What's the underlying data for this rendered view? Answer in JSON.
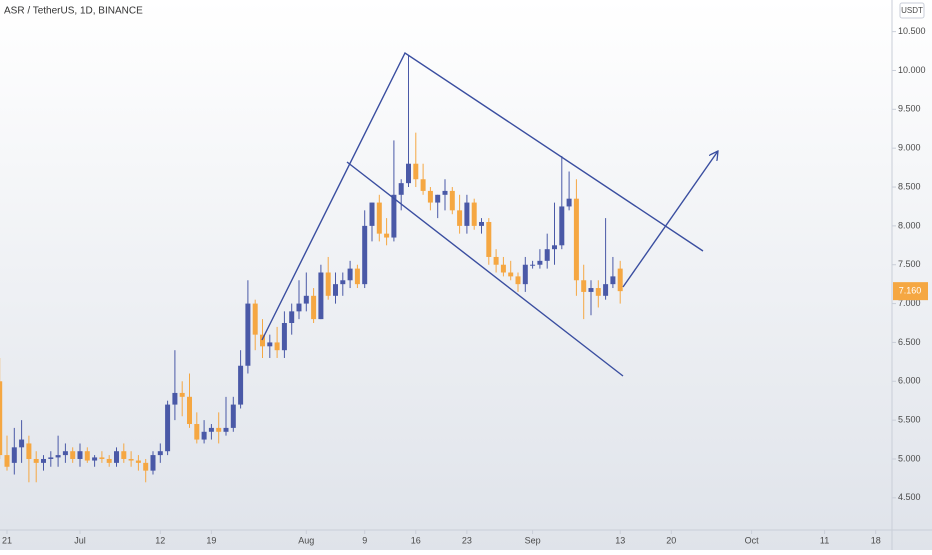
{
  "chart_data": {
    "type": "candlestick",
    "title": "ASR / TetherUS, 1D, BINANCE",
    "currency": "USDT",
    "categories": [
      "06-20",
      "06-21",
      "06-22",
      "06-23",
      "06-24",
      "06-25",
      "06-26",
      "06-27",
      "06-28",
      "06-29",
      "06-30",
      "07-01",
      "07-02",
      "07-03",
      "07-04",
      "07-05",
      "07-06",
      "07-07",
      "07-08",
      "07-09",
      "07-10",
      "07-11",
      "07-12",
      "07-13",
      "07-14",
      "07-15",
      "07-16",
      "07-17",
      "07-18",
      "07-19",
      "07-20",
      "07-21",
      "07-22",
      "07-23",
      "07-24",
      "07-25",
      "07-26",
      "07-27",
      "07-28",
      "07-29",
      "07-30",
      "07-31",
      "08-01",
      "08-02",
      "08-03",
      "08-04",
      "08-05",
      "08-06",
      "08-07",
      "08-08",
      "08-09",
      "08-10",
      "08-11",
      "08-12",
      "08-13",
      "08-14",
      "08-15",
      "08-16",
      "08-17",
      "08-18",
      "08-19",
      "08-20",
      "08-21",
      "08-22",
      "08-23",
      "08-24",
      "08-25",
      "08-26",
      "08-27",
      "08-28",
      "08-29",
      "08-30",
      "08-31",
      "09-01",
      "09-02",
      "09-03",
      "09-04",
      "09-05",
      "09-06",
      "09-07",
      "09-08",
      "09-09",
      "09-10",
      "09-11",
      "09-12",
      "09-13"
    ],
    "open": [
      6.0,
      5.05,
      4.95,
      5.15,
      5.2,
      5.0,
      4.95,
      5.0,
      5.02,
      5.05,
      5.1,
      5.0,
      5.1,
      4.98,
      5.02,
      5.0,
      4.95,
      5.1,
      5.0,
      4.98,
      4.95,
      4.85,
      5.05,
      5.1,
      5.7,
      5.85,
      5.8,
      5.45,
      5.25,
      5.35,
      5.4,
      5.35,
      5.4,
      5.7,
      6.2,
      7.0,
      6.6,
      6.45,
      6.5,
      6.4,
      6.75,
      6.9,
      7.0,
      7.1,
      6.8,
      7.4,
      7.1,
      7.25,
      7.3,
      7.45,
      7.25,
      8.0,
      8.3,
      7.9,
      7.85,
      8.4,
      8.55,
      8.8,
      8.6,
      8.45,
      8.3,
      8.4,
      8.45,
      8.2,
      8.0,
      8.3,
      8.0,
      8.05,
      7.6,
      7.5,
      7.4,
      7.35,
      7.25,
      7.5,
      7.5,
      7.55,
      7.7,
      7.75,
      8.25,
      8.35,
      7.3,
      7.15,
      7.2,
      7.1,
      7.25,
      7.45
    ],
    "high": [
      6.3,
      5.3,
      5.4,
      5.5,
      5.3,
      5.1,
      5.05,
      5.1,
      5.3,
      5.2,
      5.15,
      5.2,
      5.15,
      5.05,
      5.1,
      5.05,
      5.15,
      5.2,
      5.1,
      5.05,
      5.0,
      5.1,
      5.2,
      5.75,
      6.4,
      6.0,
      6.1,
      5.6,
      5.5,
      5.45,
      5.6,
      5.8,
      5.8,
      6.4,
      7.3,
      7.05,
      6.8,
      6.6,
      6.7,
      6.9,
      7.0,
      7.3,
      7.4,
      7.2,
      7.5,
      7.6,
      7.4,
      7.4,
      7.55,
      7.5,
      8.2,
      8.3,
      8.4,
      8.1,
      9.1,
      8.6,
      10.2,
      9.2,
      8.8,
      8.5,
      8.4,
      8.6,
      8.5,
      8.4,
      8.4,
      8.35,
      8.1,
      8.1,
      7.7,
      7.6,
      7.55,
      7.4,
      7.6,
      7.55,
      7.7,
      7.9,
      8.3,
      8.9,
      8.7,
      8.6,
      7.5,
      7.3,
      7.3,
      8.1,
      7.6,
      7.55
    ],
    "low": [
      5.0,
      4.85,
      4.8,
      4.95,
      4.7,
      4.7,
      4.85,
      4.9,
      4.9,
      4.95,
      4.95,
      4.9,
      4.95,
      4.9,
      4.95,
      4.9,
      4.9,
      4.95,
      4.9,
      4.85,
      4.7,
      4.8,
      4.95,
      5.05,
      5.5,
      5.55,
      5.4,
      5.2,
      5.2,
      5.25,
      5.2,
      5.3,
      5.35,
      5.65,
      6.1,
      6.4,
      6.3,
      6.3,
      6.3,
      6.3,
      6.6,
      6.8,
      6.9,
      6.75,
      6.8,
      7.05,
      7.0,
      7.1,
      7.2,
      7.2,
      7.2,
      7.8,
      7.8,
      7.75,
      7.8,
      8.2,
      8.5,
      8.5,
      8.4,
      8.2,
      8.1,
      8.2,
      8.15,
      7.9,
      7.9,
      7.95,
      7.9,
      7.5,
      7.4,
      7.35,
      7.3,
      7.15,
      7.15,
      7.45,
      7.45,
      7.45,
      7.5,
      7.7,
      8.2,
      7.1,
      6.8,
      6.85,
      6.95,
      7.05,
      7.2,
      7.0
    ],
    "close": [
      5.05,
      4.9,
      5.15,
      5.25,
      5.0,
      4.95,
      5.0,
      5.02,
      5.05,
      5.1,
      5.0,
      5.1,
      4.98,
      5.02,
      5.0,
      4.95,
      5.1,
      5.0,
      4.98,
      4.95,
      4.85,
      5.05,
      5.1,
      5.7,
      5.85,
      5.8,
      5.45,
      5.25,
      5.35,
      5.4,
      5.35,
      5.4,
      5.7,
      6.2,
      7.0,
      6.6,
      6.45,
      6.5,
      6.4,
      6.75,
      6.9,
      7.0,
      7.1,
      6.8,
      7.4,
      7.1,
      7.25,
      7.3,
      7.45,
      7.25,
      8.0,
      8.3,
      7.9,
      7.85,
      8.4,
      8.55,
      8.8,
      8.6,
      8.45,
      8.3,
      8.4,
      8.45,
      8.2,
      8.0,
      8.3,
      8.0,
      8.05,
      7.6,
      7.5,
      7.4,
      7.35,
      7.25,
      7.5,
      7.5,
      7.55,
      7.7,
      7.75,
      8.25,
      8.35,
      7.3,
      7.15,
      7.2,
      7.1,
      7.25,
      7.35,
      7.16
    ],
    "up_color": "#4a59a7",
    "down_color": "#f5a742",
    "ylim": [
      4.086,
      10.907
    ],
    "yticks": [
      {
        "value": 4.5,
        "label": "4.500"
      },
      {
        "value": 5.0,
        "label": "5.000"
      },
      {
        "value": 5.5,
        "label": "5.500"
      },
      {
        "value": 6.0,
        "label": "6.000"
      },
      {
        "value": 6.5,
        "label": "6.500"
      },
      {
        "value": 7.0,
        "label": "7.000"
      },
      {
        "value": 7.5,
        "label": "7.500"
      },
      {
        "value": 8.0,
        "label": "8.000"
      },
      {
        "value": 8.5,
        "label": "8.500"
      },
      {
        "value": 9.0,
        "label": "9.000"
      },
      {
        "value": 9.5,
        "label": "9.500"
      },
      {
        "value": 10.0,
        "label": "10.000"
      },
      {
        "value": 10.5,
        "label": "10.500"
      }
    ],
    "xticks": [
      {
        "value": "06-21",
        "label": "21"
      },
      {
        "value": "07-01",
        "label": "Jul"
      },
      {
        "value": "07-12",
        "label": "12"
      },
      {
        "value": "07-19",
        "label": "19"
      },
      {
        "value": "08-01",
        "label": "Aug"
      },
      {
        "value": "08-09",
        "label": "9"
      },
      {
        "value": "08-16",
        "label": "16"
      },
      {
        "value": "08-23",
        "label": "23"
      },
      {
        "value": "09-01",
        "label": "Sep"
      },
      {
        "value": "09-13",
        "label": "13"
      },
      {
        "value": "09-20",
        "label": "20"
      },
      {
        "value": "10-01",
        "label": "Oct"
      },
      {
        "value": "10-11",
        "label": "11"
      },
      {
        "value": "10-18",
        "label": "18"
      }
    ],
    "last_price": {
      "value": 7.16,
      "label": "7.160"
    }
  }
}
